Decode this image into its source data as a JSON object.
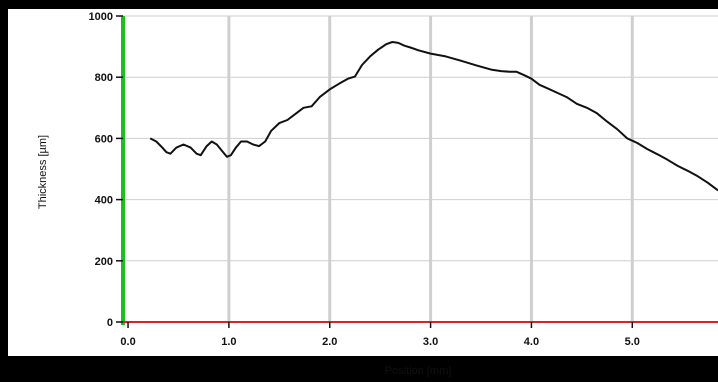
{
  "chart_data": {
    "type": "line",
    "title": "",
    "xlabel": "Position [mm]",
    "ylabel": "Thickness [µm]",
    "xlim": [
      -0.05,
      5.85
    ],
    "ylim": [
      0,
      1000
    ],
    "x_ticks": [
      0.0,
      1.0,
      2.0,
      3.0,
      4.0,
      5.0
    ],
    "x_tick_labels": [
      "0.0",
      "1.0",
      "2.0",
      "3.0",
      "4.0",
      "5.0"
    ],
    "y_ticks": [
      0,
      200,
      400,
      600,
      800,
      1000
    ],
    "y_tick_labels": [
      "0",
      "200",
      "400",
      "600",
      "800",
      "1000"
    ],
    "grid": "vertical",
    "legend": "none",
    "colors": {
      "outer_background": "#000000",
      "plot_background": "#ffffff",
      "grid": "#cfcfcf",
      "line": "#111111",
      "y_axis": "#22bb22",
      "x_axis": "#dd2222",
      "text": "#111111"
    },
    "series": [
      {
        "x": [
          0.22,
          0.28,
          0.34,
          0.38,
          0.42,
          0.48,
          0.55,
          0.62,
          0.68,
          0.72,
          0.78,
          0.83,
          0.88,
          0.93,
          0.98,
          1.02,
          1.07,
          1.12,
          1.18,
          1.24,
          1.3,
          1.36,
          1.42,
          1.5,
          1.58,
          1.66,
          1.74,
          1.82,
          1.9,
          2.0,
          2.1,
          2.18,
          2.25,
          2.32,
          2.4,
          2.48,
          2.56,
          2.62,
          2.68,
          2.74,
          2.8,
          2.88,
          3.0,
          3.15,
          3.3,
          3.45,
          3.6,
          3.7,
          3.78,
          3.85,
          3.92,
          4.0,
          4.08,
          4.15,
          4.25,
          4.35,
          4.45,
          4.55,
          4.65,
          4.75,
          4.85,
          4.95,
          5.05,
          5.15,
          5.25,
          5.35,
          5.45,
          5.55,
          5.65,
          5.75,
          5.85
        ],
        "y": [
          600,
          590,
          570,
          555,
          550,
          570,
          580,
          570,
          550,
          545,
          575,
          590,
          580,
          560,
          540,
          545,
          570,
          590,
          590,
          580,
          575,
          590,
          625,
          650,
          660,
          680,
          700,
          705,
          735,
          760,
          780,
          795,
          802,
          840,
          868,
          890,
          908,
          915,
          912,
          903,
          897,
          888,
          877,
          868,
          854,
          839,
          825,
          820,
          818,
          818,
          808,
          795,
          775,
          765,
          750,
          735,
          713,
          700,
          682,
          655,
          630,
          600,
          585,
          565,
          548,
          530,
          510,
          494,
          476,
          455,
          430
        ]
      }
    ]
  }
}
